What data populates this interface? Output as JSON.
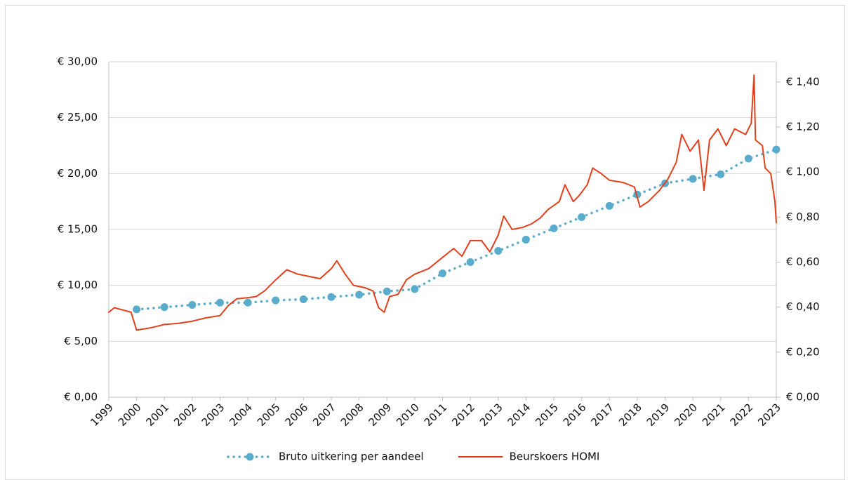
{
  "chart_data": {
    "type": "line",
    "xlim": [
      1999,
      2023
    ],
    "xticks": [
      1999,
      2000,
      2001,
      2002,
      2003,
      2004,
      2005,
      2006,
      2007,
      2008,
      2009,
      2010,
      2011,
      2012,
      2013,
      2014,
      2015,
      2016,
      2017,
      2018,
      2019,
      2020,
      2021,
      2022,
      2023
    ],
    "ylim": [
      0,
      30
    ],
    "yticks": [
      {
        "value": 0,
        "label": "€ 0,00"
      },
      {
        "value": 5,
        "label": "€ 5,00"
      },
      {
        "value": 10,
        "label": "€ 10,00"
      },
      {
        "value": 15,
        "label": "€ 15,00"
      },
      {
        "value": 20,
        "label": "€ 20,00"
      },
      {
        "value": 25,
        "label": "€ 25,00"
      },
      {
        "value": 30,
        "label": "€ 30,00"
      }
    ],
    "y2lim": [
      0,
      1.49
    ],
    "y2ticks": [
      {
        "value": 0,
        "label": "€ 0,00"
      },
      {
        "value": 0.2,
        "label": "€ 0,20"
      },
      {
        "value": 0.4,
        "label": "€ 0,40"
      },
      {
        "value": 0.6,
        "label": "€ 0,60"
      },
      {
        "value": 0.8,
        "label": "€ 0,80"
      },
      {
        "value": 1.0,
        "label": "€ 1,00"
      },
      {
        "value": 1.2,
        "label": "€ 1,20"
      },
      {
        "value": 1.4,
        "label": "€ 1,40"
      }
    ],
    "grid": true,
    "legend": "bottom",
    "series": [
      {
        "name": "Bruto uitkering per aandeel",
        "color": "#5aaccc",
        "axis": "y2",
        "style": "dotted-markers",
        "x": [
          2000,
          2001,
          2002,
          2003,
          2004,
          2005,
          2006,
          2007,
          2008,
          2009,
          2010,
          2011,
          2012,
          2013,
          2014,
          2015,
          2016,
          2017,
          2018,
          2019,
          2020,
          2021,
          2022,
          2023
        ],
        "values": [
          0.39,
          0.4,
          0.41,
          0.42,
          0.42,
          0.43,
          0.435,
          0.445,
          0.455,
          0.47,
          0.48,
          0.55,
          0.6,
          0.65,
          0.7,
          0.75,
          0.8,
          0.85,
          0.9,
          0.95,
          0.97,
          0.99,
          1.06,
          1.1
        ]
      },
      {
        "name": "Beurskoers HOMI",
        "color": "#e2401c",
        "axis": "y",
        "style": "solid",
        "x": [
          1999.0,
          1999.2,
          1999.5,
          1999.8,
          2000.0,
          2000.5,
          2001.0,
          2001.5,
          2002.0,
          2002.5,
          2003.0,
          2003.3,
          2003.6,
          2004.0,
          2004.3,
          2004.6,
          2005.0,
          2005.4,
          2005.8,
          2006.2,
          2006.6,
          2007.0,
          2007.2,
          2007.5,
          2007.8,
          2008.2,
          2008.5,
          2008.7,
          2008.9,
          2009.1,
          2009.4,
          2009.7,
          2010.0,
          2010.5,
          2011.0,
          2011.4,
          2011.7,
          2012.0,
          2012.4,
          2012.7,
          2013.0,
          2013.2,
          2013.5,
          2013.9,
          2014.2,
          2014.5,
          2014.8,
          2015.2,
          2015.4,
          2015.7,
          2015.9,
          2016.2,
          2016.4,
          2016.7,
          2017.0,
          2017.5,
          2017.9,
          2018.1,
          2018.4,
          2018.8,
          2019.1,
          2019.4,
          2019.6,
          2019.9,
          2020.2,
          2020.4,
          2020.6,
          2020.9,
          2021.2,
          2021.5,
          2021.9,
          2022.1,
          2022.2,
          2022.25,
          2022.5,
          2022.6,
          2022.8,
          2022.95,
          2023.0
        ],
        "values": [
          7.6,
          8.0,
          7.8,
          7.6,
          6.0,
          6.2,
          6.5,
          6.6,
          6.8,
          7.1,
          7.3,
          8.2,
          8.8,
          8.9,
          9.0,
          9.5,
          10.5,
          11.4,
          11.0,
          10.8,
          10.6,
          11.5,
          12.2,
          11.0,
          10.0,
          9.8,
          9.5,
          8.0,
          7.6,
          9.0,
          9.2,
          10.5,
          11.0,
          11.5,
          12.5,
          13.3,
          12.6,
          14.0,
          14.0,
          13.0,
          14.5,
          16.2,
          15.0,
          15.2,
          15.5,
          16.0,
          16.8,
          17.5,
          19.0,
          17.5,
          18.0,
          19.0,
          20.5,
          20.0,
          19.4,
          19.2,
          18.8,
          17.0,
          17.5,
          18.5,
          19.5,
          21.0,
          23.5,
          22.0,
          23.0,
          18.5,
          23.0,
          24.0,
          22.5,
          24.0,
          23.5,
          24.5,
          28.8,
          23.0,
          22.5,
          20.5,
          20.0,
          17.5,
          15.6
        ]
      }
    ]
  }
}
